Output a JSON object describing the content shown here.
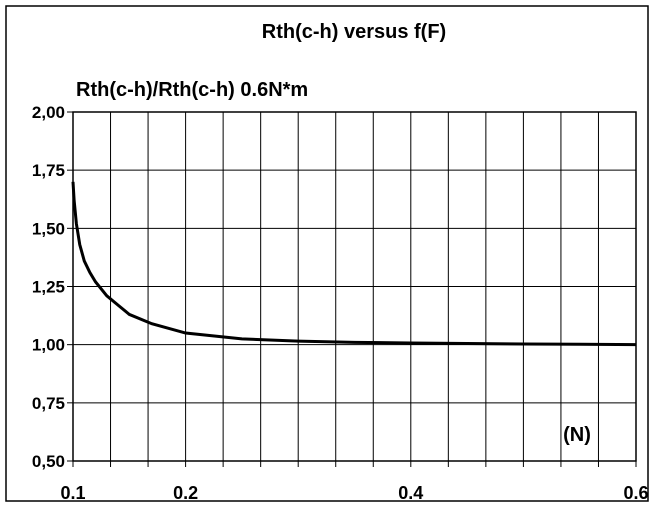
{
  "chart_data": {
    "type": "line",
    "title": "Rth(c-h) versus f(F)",
    "ylabel": "Rth(c-h)/Rth(c-h) 0.6N*m",
    "xlabel": "(N)",
    "ylim": [
      0.5,
      2.0
    ],
    "xlim": [
      0.1,
      0.6
    ],
    "yticks": [
      {
        "value": 2.0,
        "label": "2,00"
      },
      {
        "value": 1.75,
        "label": "1,75"
      },
      {
        "value": 1.5,
        "label": "1,50"
      },
      {
        "value": 1.25,
        "label": "1,25"
      },
      {
        "value": 1.0,
        "label": "1,00"
      },
      {
        "value": 0.75,
        "label": "0,75"
      },
      {
        "value": 0.5,
        "label": "0,50"
      }
    ],
    "xticks": [
      {
        "value": 0.1,
        "label": "0.1"
      },
      {
        "value": 0.2,
        "label": "0.2"
      },
      {
        "value": 0.4,
        "label": "0.4"
      },
      {
        "value": 0.6,
        "label": "0.6"
      }
    ],
    "grid": true,
    "series": [
      {
        "color": "#000000",
        "x": [
          0.1,
          0.101,
          0.103,
          0.106,
          0.11,
          0.115,
          0.12,
          0.13,
          0.14,
          0.15,
          0.17,
          0.2,
          0.25,
          0.3,
          0.35,
          0.4,
          0.45,
          0.5,
          0.55,
          0.6
        ],
        "y": [
          1.7,
          1.62,
          1.52,
          1.43,
          1.36,
          1.31,
          1.27,
          1.21,
          1.17,
          1.13,
          1.09,
          1.05,
          1.025,
          1.015,
          1.01,
          1.007,
          1.005,
          1.003,
          1.002,
          1.0
        ]
      }
    ]
  }
}
